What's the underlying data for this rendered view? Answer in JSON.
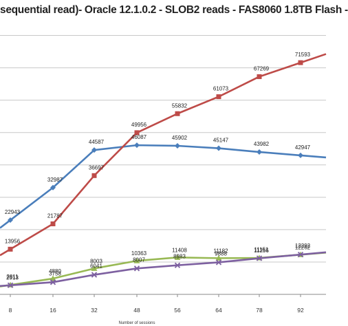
{
  "chart_data": {
    "type": "line",
    "title": "sequential read)- Oracle 12.1.0.2 - SLOB2 reads - FAS8060 1.8TB Flash -",
    "xlabel": "Number of sessions",
    "ylabel": "",
    "categories": [
      "8",
      "16",
      "32",
      "48",
      "56",
      "64",
      "78",
      "92"
    ],
    "ylim": [
      0,
      85000
    ],
    "grid": true,
    "series": [
      {
        "color": "#4a7ebb",
        "marker": "diamond",
        "values": [
          22943,
          32987,
          44587,
          46087,
          45902,
          45147,
          43982,
          42947
        ],
        "labels": [
          "22943",
          "32987",
          "44587",
          "46087",
          "45902",
          "45147",
          "43982",
          "42947"
        ]
      },
      {
        "color": "#be4b48",
        "marker": "square",
        "values": [
          13956,
          21787,
          36697,
          49956,
          55832,
          61073,
          67269,
          71593
        ],
        "labels": [
          "13956",
          "21787",
          "36697",
          "49956",
          "55832",
          "61073",
          "67269",
          "71593"
        ]
      },
      {
        "color": "#98b954",
        "marker": "triangle",
        "values": [
          2913,
          4880,
          8003,
          10363,
          11408,
          11182,
          11256,
          12262
        ],
        "labels": [
          "2913",
          "4880",
          "8003",
          "10363",
          "11408",
          "11182",
          "11256",
          "12262"
        ]
      },
      {
        "color": "#7d60a0",
        "marker": "x",
        "values": [
          2811,
          3758,
          6041,
          8007,
          8983,
          9888,
          11151,
          12292
        ],
        "labels": [
          "2811",
          "3758",
          "6041",
          "8007",
          "8983",
          "9888",
          "11151",
          "12292"
        ]
      }
    ]
  }
}
